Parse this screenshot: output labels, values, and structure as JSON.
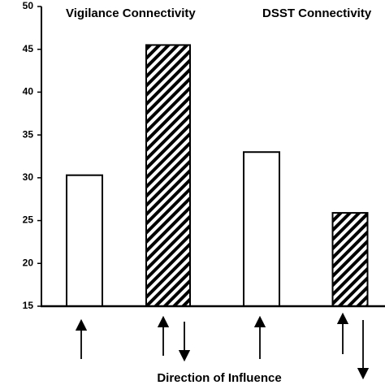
{
  "chart_data": {
    "type": "bar",
    "annotations": [
      "Vigilance Connectivity",
      "DSST Connectivity"
    ],
    "x_label": "Direction of Influence",
    "categories": [
      null,
      null,
      null,
      null
    ],
    "values": [
      30.3,
      45.5,
      33,
      25.9
    ],
    "bar_styles": [
      "open",
      "hatched",
      "open",
      "hatched"
    ],
    "color": "#000000",
    "ylim": [
      15,
      50
    ],
    "yticks": [
      15,
      20,
      25,
      30,
      35,
      40,
      45,
      50
    ],
    "grid": false
  }
}
